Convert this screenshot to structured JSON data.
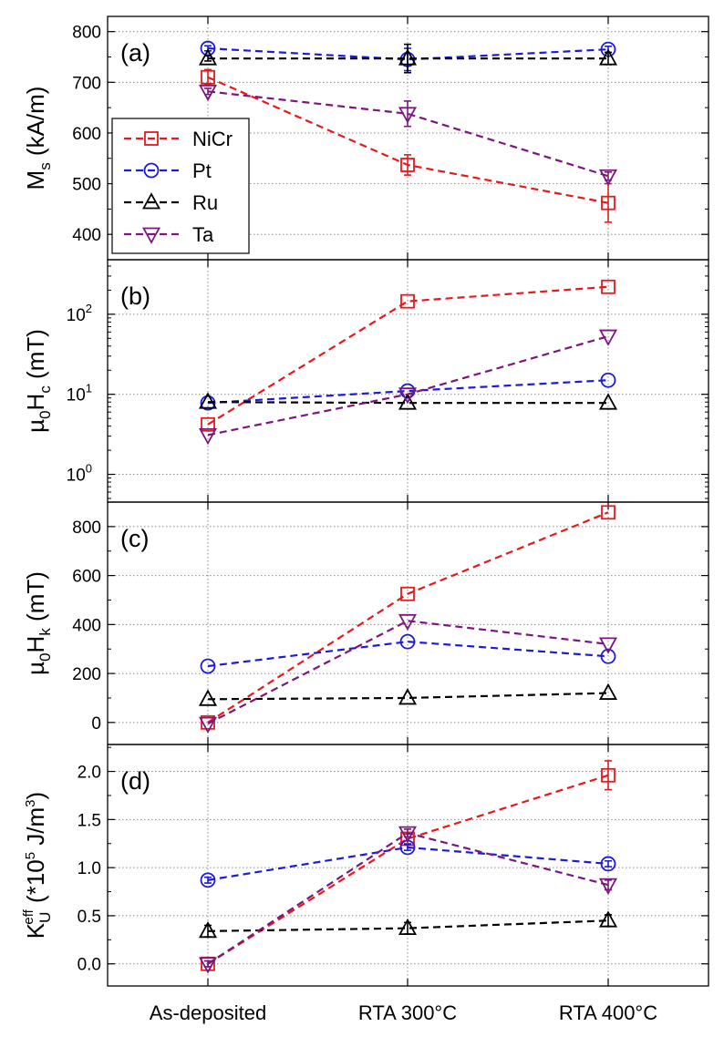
{
  "chart_data": {
    "type": "line",
    "categories": [
      "As-deposited",
      "RTA 300°C",
      "RTA 400°C"
    ],
    "legend": {
      "placement": "inside-left-panel-a",
      "entries": [
        "NiCr",
        "Pt",
        "Ru",
        "Ta"
      ]
    },
    "series_style": [
      {
        "name": "NiCr",
        "color": "#e8181b",
        "marker": "square"
      },
      {
        "name": "Pt",
        "color": "#1b1bdd",
        "marker": "circle"
      },
      {
        "name": "Ru",
        "color": "#000000",
        "marker": "triangle-up"
      },
      {
        "name": "Ta",
        "color": "#7b177e",
        "marker": "triangle-down"
      }
    ],
    "panels": [
      {
        "label": "(a)",
        "ylabel": {
          "main": "M",
          "sub": "s",
          "rest": " (kA/m)"
        },
        "scale": "linear",
        "ylim": [
          350,
          830
        ],
        "yticks": [
          400,
          500,
          600,
          700,
          800
        ],
        "ytick_labels": [
          "400",
          "500",
          "600",
          "700",
          "800"
        ],
        "grid": true,
        "series": [
          {
            "name": "NiCr",
            "values": [
              710,
              537,
              462
            ],
            "errors": [
              15,
              20,
              38
            ]
          },
          {
            "name": "Pt",
            "values": [
              767,
              745,
              765
            ],
            "errors": [
              5,
              22,
              6
            ]
          },
          {
            "name": "Ru",
            "values": [
              747,
              747,
              747
            ],
            "errors": [
              5,
              28,
              12
            ]
          },
          {
            "name": "Ta",
            "values": [
              682,
              638,
              515
            ],
            "errors": [
              6,
              25,
              8
            ]
          }
        ]
      },
      {
        "label": "(b)",
        "ylabel": {
          "main": "µ",
          "sub": "0",
          "rest": "H",
          "sub2": "c",
          "rest2": " (mT)"
        },
        "scale": "log",
        "ylim": [
          0.45,
          480
        ],
        "yticks": [
          1,
          10,
          100
        ],
        "ytick_labels": [
          {
            "base": "10",
            "exp": "0"
          },
          {
            "base": "10",
            "exp": "1"
          },
          {
            "base": "10",
            "exp": "2"
          }
        ],
        "grid": true,
        "series": [
          {
            "name": "NiCr",
            "values": [
              4.2,
              145,
              220
            ]
          },
          {
            "name": "Pt",
            "values": [
              7.8,
              11,
              15
            ]
          },
          {
            "name": "Ru",
            "values": [
              8,
              7.8,
              7.8
            ]
          },
          {
            "name": "Ta",
            "values": [
              3.1,
              10,
              53
            ]
          }
        ]
      },
      {
        "label": "(c)",
        "ylabel": {
          "main": "µ",
          "sub": "0",
          "rest": "H",
          "sub2": "k",
          "rest2": " (mT)"
        },
        "scale": "linear",
        "ylim": [
          -90,
          900
        ],
        "yticks": [
          0,
          200,
          400,
          600,
          800
        ],
        "ytick_labels": [
          "0",
          "200",
          "400",
          "600",
          "800"
        ],
        "grid": true,
        "series": [
          {
            "name": "NiCr",
            "values": [
              0,
              525,
              858
            ]
          },
          {
            "name": "Pt",
            "values": [
              230,
              330,
              270
            ]
          },
          {
            "name": "Ru",
            "values": [
              95,
              100,
              120
            ]
          },
          {
            "name": "Ta",
            "values": [
              -5,
              415,
              320
            ]
          }
        ]
      },
      {
        "label": "(d)",
        "ylabel": {
          "main": "K",
          "sub": "U",
          "sup": "eff",
          "rest": " (*10",
          "sup2": "5",
          "rest2": " J/m",
          "sup3": "3",
          "rest3": ")"
        },
        "scale": "linear",
        "ylim": [
          -0.23,
          2.28
        ],
        "yticks": [
          0,
          0.5,
          1.0,
          1.5,
          2.0
        ],
        "ytick_labels": [
          "0.0",
          "0.5",
          "1.0",
          "1.5",
          "2.0"
        ],
        "grid": true,
        "series": [
          {
            "name": "NiCr",
            "values": [
              0,
              1.3,
              1.96
            ],
            "errors": [
              0.03,
              0.05,
              0.15
            ]
          },
          {
            "name": "Pt",
            "values": [
              0.87,
              1.21,
              1.04
            ],
            "errors": [
              0.03,
              0.03,
              0.03
            ]
          },
          {
            "name": "Ru",
            "values": [
              0.34,
              0.37,
              0.45
            ],
            "errors": [
              0.06,
              0.06,
              0.06
            ]
          },
          {
            "name": "Ta",
            "values": [
              0,
              1.36,
              0.82
            ],
            "errors": [
              0.03,
              0.04,
              0.05
            ]
          }
        ]
      }
    ]
  }
}
